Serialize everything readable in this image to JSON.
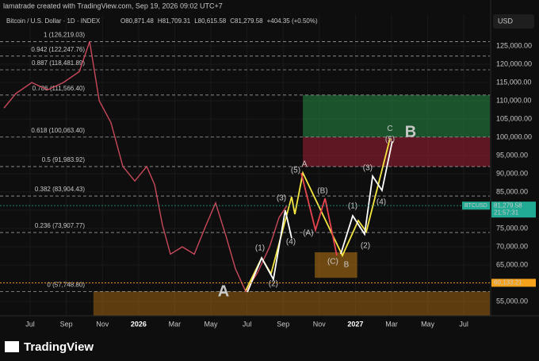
{
  "header": {
    "credit": "lamatrade created with TradingView.com, Sep 19, 2026 09:02 UTC+7",
    "symbol": "Bitcoin / U.S. Dollar · 1D · INDEX",
    "ohlc": [
      "O80,871.48",
      "H81,709.31",
      "L80,615.58",
      "C81,279.58",
      "+404.35 (+0.50%)"
    ]
  },
  "currency_button": "USD",
  "watermark": "TradingView",
  "chart_data": {
    "type": "line",
    "xlim": [
      -1.67,
      25.44
    ],
    "xticks": [
      {
        "value": 0,
        "label": "Jul"
      },
      {
        "value": 2,
        "label": "Sep"
      },
      {
        "value": 4,
        "label": "Nov"
      },
      {
        "value": 6,
        "label": "2026"
      },
      {
        "value": 8,
        "label": "Mar"
      },
      {
        "value": 10,
        "label": "May"
      },
      {
        "value": 12,
        "label": "Jul"
      },
      {
        "value": 14,
        "label": "Sep"
      },
      {
        "value": 16,
        "label": "Nov"
      },
      {
        "value": 18,
        "label": "2027"
      },
      {
        "value": 20,
        "label": "Mar"
      },
      {
        "value": 22,
        "label": "May"
      },
      {
        "value": 24,
        "label": "Jul"
      }
    ],
    "ylim": [
      51100,
      133700
    ],
    "yticks": [
      {
        "value": 125000,
        "label": "125,000.00"
      },
      {
        "value": 120000,
        "label": "120,000.00"
      },
      {
        "value": 115000,
        "label": "115,000.00"
      },
      {
        "value": 110000,
        "label": "110,000.00"
      },
      {
        "value": 105000,
        "label": "105,000.00"
      },
      {
        "value": 100000,
        "label": "100,000.00"
      },
      {
        "value": 95000,
        "label": "95,000.00"
      },
      {
        "value": 90000,
        "label": "90,000.00"
      },
      {
        "value": 85000,
        "label": "85,000.00"
      },
      {
        "value": 80000,
        "label": "80,000.00"
      },
      {
        "value": 75000,
        "label": "75,000.00"
      },
      {
        "value": 70000,
        "label": "70,000.00"
      },
      {
        "value": 65000,
        "label": "65,000.00"
      },
      {
        "value": 60000,
        "label": "60,000.00"
      },
      {
        "value": 55000,
        "label": "55,000.00"
      }
    ],
    "zones": [
      {
        "x": [
          15.09,
          25.44
        ],
        "y": [
          100063.4,
          111566.4
        ],
        "color": "rgba(38,140,70,0.55)"
      },
      {
        "x": [
          15.09,
          25.44
        ],
        "y": [
          91983.92,
          100063.4
        ],
        "color": "rgba(150,30,50,0.6)"
      },
      {
        "x": [
          3.5,
          25.44
        ],
        "y": [
          51100,
          57748.8
        ],
        "color": "rgba(190,120,20,0.45)"
      },
      {
        "x": [
          15.75,
          18.1
        ],
        "y": [
          61500,
          68500
        ],
        "color": "rgba(190,120,20,0.55)"
      }
    ],
    "fib_levels": [
      {
        "value": 126219.03,
        "label": "1 (126,219.03)"
      },
      {
        "value": 122247.76,
        "label": "0.942 (122,247.76)"
      },
      {
        "value": 118481.89,
        "label": "0.887 (118,481.89)"
      },
      {
        "value": 111566.4,
        "label": "0.786 (111,566.40)"
      },
      {
        "value": 100063.4,
        "label": "0.618 (100,063.40)"
      },
      {
        "value": 91983.92,
        "label": "0.5 (91,983.92)"
      },
      {
        "value": 83904.43,
        "label": "0.382 (83,904.43)"
      },
      {
        "value": 73907.77,
        "label": "0.236 (73,907.77)"
      },
      {
        "value": 57748.8,
        "label": "0 (57,748.80)"
      }
    ],
    "series": [
      {
        "color": "#c9495a",
        "x": [
          -1.45,
          -0.79,
          0.09,
          0.96,
          1.84,
          2.72,
          3.29,
          3.82,
          4.47,
          5.13,
          5.79,
          6.45,
          6.89,
          7.32,
          7.76,
          8.42,
          9.08,
          9.74,
          10.26,
          10.83,
          11.36,
          11.93,
          12.59,
          13.25,
          13.77,
          14.21
        ],
        "values": [
          108000,
          112000,
          115000,
          113000,
          115000,
          118000,
          126219,
          110000,
          104000,
          92000,
          88000,
          92000,
          87000,
          76000,
          68000,
          70000,
          68000,
          76000,
          82000,
          73000,
          64000,
          57748,
          63000,
          70000,
          78000,
          81279
        ]
      },
      {
        "color": "#f5e642",
        "x": [
          11.93,
          12.81,
          13.33,
          14.47,
          14.65,
          15.09,
          17.28,
          18.16,
          18.6,
          19.91
        ],
        "values": [
          58043,
          66957,
          62609,
          83696,
          78913,
          90217,
          67609,
          77174,
          74130,
          99565
        ]
      },
      {
        "color": "#ffffff",
        "x": [
          12.02,
          12.81,
          13.46,
          14.12,
          14.47,
          15.5,
          17.19,
          17.85,
          18.51,
          18.95,
          19.47,
          20.04
        ],
        "values": [
          57609,
          66957,
          61087,
          80000,
          72391,
          null,
          68043,
          78478,
          73478,
          89348,
          85435,
          98913
        ]
      },
      {
        "color": "#e8434f",
        "x": [
          15.0,
          15.79,
          16.32,
          16.97
        ],
        "values": [
          90217,
          74565,
          83261,
          67609
        ]
      }
    ],
    "annotations": [
      {
        "text": "A",
        "x": 10.7,
        "y": 57609,
        "color": "#f7a21b",
        "size": 20
      },
      {
        "text": "B",
        "x": 21.05,
        "y": 101304,
        "color": "#f7a21b",
        "size": 20
      },
      {
        "text": "C",
        "x": 19.91,
        "y": 102300,
        "color": "#f5e642",
        "size": 10
      },
      {
        "text": "(5)",
        "x": 19.91,
        "y": 99348,
        "color": "#ffffff",
        "size": 10
      },
      {
        "text": "(1)",
        "x": 12.72,
        "y": 69565,
        "color": "#ffffff",
        "size": 10
      },
      {
        "text": "(2)",
        "x": 13.46,
        "y": 59783,
        "color": "#ffffff",
        "size": 10
      },
      {
        "text": "(3)",
        "x": 13.9,
        "y": 83261,
        "color": "#ffffff",
        "size": 10
      },
      {
        "text": "(4)",
        "x": 14.43,
        "y": 71391,
        "color": "#7fd6e0",
        "size": 10
      },
      {
        "text": "(5)",
        "x": 14.69,
        "y": 90870,
        "color": "#ffffff",
        "size": 10
      },
      {
        "text": "A",
        "x": 15.18,
        "y": 92609,
        "color": "#f7a21b",
        "size": 10
      },
      {
        "text": "(B)",
        "x": 16.18,
        "y": 85217,
        "color": "#e8434f",
        "size": 10
      },
      {
        "text": "(A)",
        "x": 15.39,
        "y": 73696,
        "color": "#e8434f",
        "size": 10
      },
      {
        "text": "(C)",
        "x": 16.75,
        "y": 65870,
        "color": "#e8434f",
        "size": 10
      },
      {
        "text": "B",
        "x": 17.5,
        "y": 65000,
        "color": "#f7a21b",
        "size": 10
      },
      {
        "text": "(1)",
        "x": 17.85,
        "y": 81087,
        "color": "#ffffff",
        "size": 10
      },
      {
        "text": "(2)",
        "x": 18.55,
        "y": 70217,
        "color": "#ffffff",
        "size": 10
      },
      {
        "text": "(3)",
        "x": 18.68,
        "y": 91522,
        "color": "#ffffff",
        "size": 10
      },
      {
        "text": "(4)",
        "x": 19.43,
        "y": 82174,
        "color": "#ffffff",
        "size": 10
      }
    ],
    "price_tags": [
      {
        "name": "BTCUSD",
        "value": 81279.58,
        "label": "81,279.58",
        "time": "21:57:31",
        "color": "#22ab94"
      },
      {
        "value": 60133.21,
        "label": "60,133.21",
        "color": "#f7a21b"
      }
    ]
  }
}
